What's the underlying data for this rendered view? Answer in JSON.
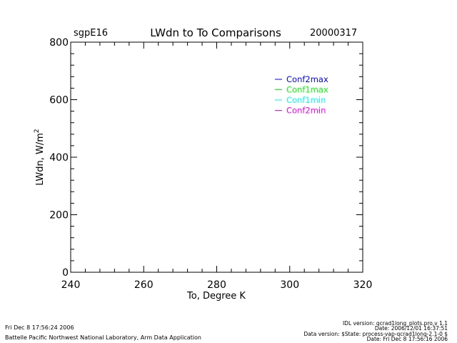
{
  "header": {
    "site": "sgpE16",
    "title": "LWdn to To Comparisons",
    "date": "20000317"
  },
  "chart_data": {
    "type": "line",
    "title": "LWdn to To Comparisons",
    "xlabel": "To, Degree K",
    "ylabel": "LWdn, W/m",
    "ylabel_superscript": "2",
    "xlim": [
      240,
      320
    ],
    "ylim": [
      0,
      800
    ],
    "x_ticks": [
      "240",
      "260",
      "280",
      "300",
      "320"
    ],
    "y_ticks": [
      "0",
      "200",
      "400",
      "600",
      "800"
    ],
    "grid": false,
    "legend_position": "top-right",
    "series": [
      {
        "name": "Conf2max",
        "color": "#0000ff",
        "x": [],
        "y": []
      },
      {
        "name": "Conf1max",
        "color": "#00ff00",
        "x": [],
        "y": []
      },
      {
        "name": "Conf1min",
        "color": "#00ffff",
        "x": [],
        "y": []
      },
      {
        "name": "Conf2min",
        "color": "#ff00ff",
        "x": [],
        "y": []
      }
    ]
  },
  "footer": {
    "left_line1": "Fri Dec  8 17:56:24 2006",
    "left_line2": "Battelle Pacific Northwest National Laboratory, Arm Data Application",
    "right_line1": "IDL version: qcrad1long_plots.pro,v 1.1",
    "right_line2": "Date: 2006/12/01 16:37:51",
    "right_line3": "Data version: $State: process-vap-qcrad1long-2.1-0 $",
    "right_line4": "Date: Fri Dec  8 17:56:16 2006"
  }
}
